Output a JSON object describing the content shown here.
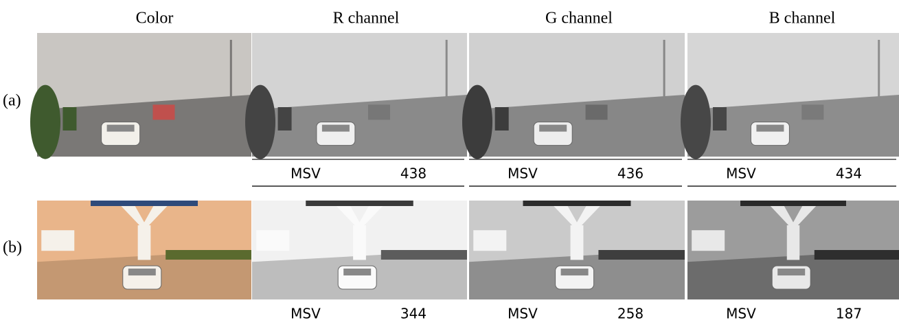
{
  "columns": [
    "Color",
    "R channel",
    "G channel",
    "B channel"
  ],
  "rows": [
    {
      "label": "(a)",
      "metric": "MSV",
      "values": [
        438,
        436,
        434
      ]
    },
    {
      "label": "(b)",
      "metric": "MSV",
      "values": [
        344,
        258,
        187
      ]
    }
  ]
}
